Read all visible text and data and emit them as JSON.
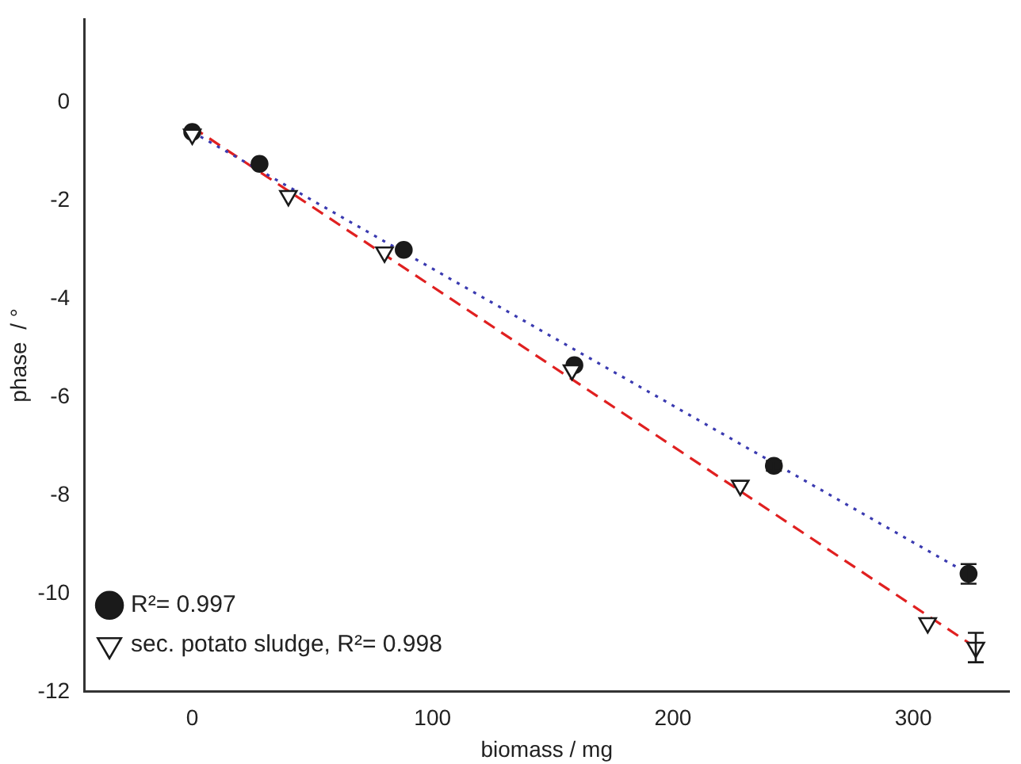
{
  "chart_data": {
    "type": "scatter",
    "xlabel": "biomass / mg",
    "ylabel": "phase  / °",
    "xlim": [
      -45,
      340
    ],
    "ylim": [
      -12,
      1.7
    ],
    "xticks": [
      0,
      100,
      200,
      300
    ],
    "yticks": [
      0,
      -2,
      -4,
      -6,
      -8,
      -10,
      -12
    ],
    "grid": false,
    "legend": "bottom left",
    "series": [
      {
        "name": "R²= 0.997",
        "type": "scatter",
        "marker": "circle",
        "color": "#1a1a1a",
        "x": [
          0,
          28,
          88,
          159,
          242,
          323
        ],
        "values": [
          -0.6,
          -1.25,
          -3.0,
          -5.35,
          -7.4,
          -9.6
        ],
        "errors": [
          null,
          null,
          null,
          null,
          0.1,
          0.2
        ]
      },
      {
        "name": "sec. potato sludge, R²= 0.998",
        "type": "scatter",
        "marker": "triangle",
        "color": "#1a1a1a",
        "x": [
          0,
          40,
          80,
          158,
          228,
          306,
          326
        ],
        "values": [
          -0.65,
          -1.9,
          -3.05,
          -5.45,
          -7.8,
          -10.6,
          -11.1
        ],
        "errors": [
          null,
          null,
          null,
          null,
          null,
          null,
          0.3
        ]
      },
      {
        "type": "line",
        "line_style": "dotted",
        "color": "#3a3ab0",
        "x": [
          0,
          323
        ],
        "values": [
          -0.6,
          -9.6
        ]
      },
      {
        "type": "line",
        "line_style": "dashed",
        "color": "#e02020",
        "x": [
          0,
          326
        ],
        "values": [
          -0.5,
          -11.1
        ]
      }
    ]
  }
}
